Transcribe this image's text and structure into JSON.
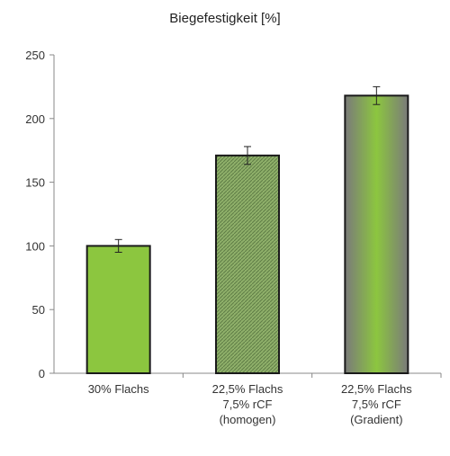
{
  "chart_data": {
    "type": "bar",
    "title": "Biegefestigkeit [%]",
    "xlabel": "",
    "ylabel": "",
    "ylim": [
      0,
      250
    ],
    "yticks": [
      0,
      50,
      100,
      150,
      200,
      250
    ],
    "grid": false,
    "categories": [
      [
        "30% Flachs"
      ],
      [
        "22,5% Flachs",
        "7,5% rCF",
        "(homogen)"
      ],
      [
        "22,5% Flachs",
        "7,5% rCF",
        "(Gradient)"
      ]
    ],
    "values": [
      100,
      171,
      218
    ],
    "error": [
      5,
      7,
      7
    ],
    "bar_styles": [
      "solid",
      "hatched",
      "gradient"
    ],
    "colors": {
      "green": "#8CC63F",
      "hatch": "#7d9a5f",
      "gray": "#7a7a7a",
      "edge": "#1a1a1a",
      "axis": "#888888"
    }
  }
}
